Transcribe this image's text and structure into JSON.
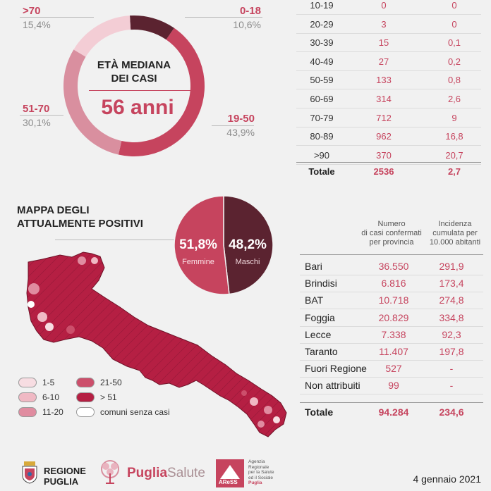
{
  "donut": {
    "center_title_line1": "ETÀ MEDIANA",
    "center_title_line2": "DEI CASI",
    "center_value": "56 anni",
    "segments": [
      {
        "label": "0-18",
        "percent": "10,6%",
        "value": 10.6,
        "color": "#5b2330"
      },
      {
        "label": "19-50",
        "percent": "43,9%",
        "value": 43.9,
        "color": "#c6445e"
      },
      {
        "label": "51-70",
        "percent": "30,1%",
        "value": 30.1,
        "color": "#d98f9f"
      },
      {
        "label": ">70",
        "percent": "15,4%",
        "value": 15.4,
        "color": "#f3cdd5"
      }
    ]
  },
  "age_table": {
    "rows": [
      {
        "age": "10-19",
        "deaths": "0",
        "rate": "0"
      },
      {
        "age": "20-29",
        "deaths": "3",
        "rate": "0"
      },
      {
        "age": "30-39",
        "deaths": "15",
        "rate": "0,1"
      },
      {
        "age": "40-49",
        "deaths": "27",
        "rate": "0,2"
      },
      {
        "age": "50-59",
        "deaths": "133",
        "rate": "0,8"
      },
      {
        "age": "60-69",
        "deaths": "314",
        "rate": "2,6"
      },
      {
        "age": "70-79",
        "deaths": "712",
        "rate": "9"
      },
      {
        "age": "80-89",
        "deaths": "962",
        "rate": "16,8"
      },
      {
        "age": ">90",
        "deaths": "370",
        "rate": "20,7"
      }
    ],
    "total": {
      "label": "Totale",
      "deaths": "2536",
      "rate": "2,7"
    }
  },
  "map": {
    "title_line1": "MAPPA DEGLI",
    "title_line2": "ATTUALMENTE POSITIVI",
    "legend": [
      {
        "label": "1-5",
        "color": "#f7dde2"
      },
      {
        "label": "6-10",
        "color": "#f0b9c4"
      },
      {
        "label": "11-20",
        "color": "#e08ca0"
      },
      {
        "label": "21-50",
        "color": "#cc4f6b"
      },
      {
        "label": "> 51",
        "color": "#b51f43"
      },
      {
        "label": "comuni senza casi",
        "color": "#ffffff"
      }
    ]
  },
  "gender": {
    "female_percent": "51,8%",
    "female_label": "Femmine",
    "female_value": 51.8,
    "male_percent": "48,2%",
    "male_label": "Maschi",
    "male_value": 48.2
  },
  "province_table": {
    "header_cases": [
      "Numero",
      "di casi confermati",
      "per provincia"
    ],
    "header_incidence": [
      "Incidenza",
      "cumulata per",
      "10.000 abitanti"
    ],
    "rows": [
      {
        "name": "Bari",
        "cases": "36.550",
        "incidence": "291,9"
      },
      {
        "name": "Brindisi",
        "cases": "6.816",
        "incidence": "173,4"
      },
      {
        "name": "BAT",
        "cases": "10.718",
        "incidence": "274,8"
      },
      {
        "name": "Foggia",
        "cases": "20.829",
        "incidence": "334,8"
      },
      {
        "name": "Lecce",
        "cases": "7.338",
        "incidence": "92,3"
      },
      {
        "name": "Taranto",
        "cases": "11.407",
        "incidence": "197,8"
      },
      {
        "name": "Fuori Regione",
        "cases": "527",
        "incidence": "-"
      },
      {
        "name": "Non attribuiti",
        "cases": "99",
        "incidence": "-"
      }
    ],
    "total": {
      "label": "Totale",
      "cases": "94.284",
      "incidence": "234,6"
    }
  },
  "footer": {
    "regione_line1": "REGIONE",
    "regione_line2": "PUGLIA",
    "puglia": "Puglia",
    "salute": "Salute",
    "aress": "AReSS",
    "aress_desc": [
      "Agenzia",
      "Regionale",
      "per la Salute",
      "ed il Sociale",
      "Puglia"
    ],
    "date": "4 gennaio 2021"
  }
}
